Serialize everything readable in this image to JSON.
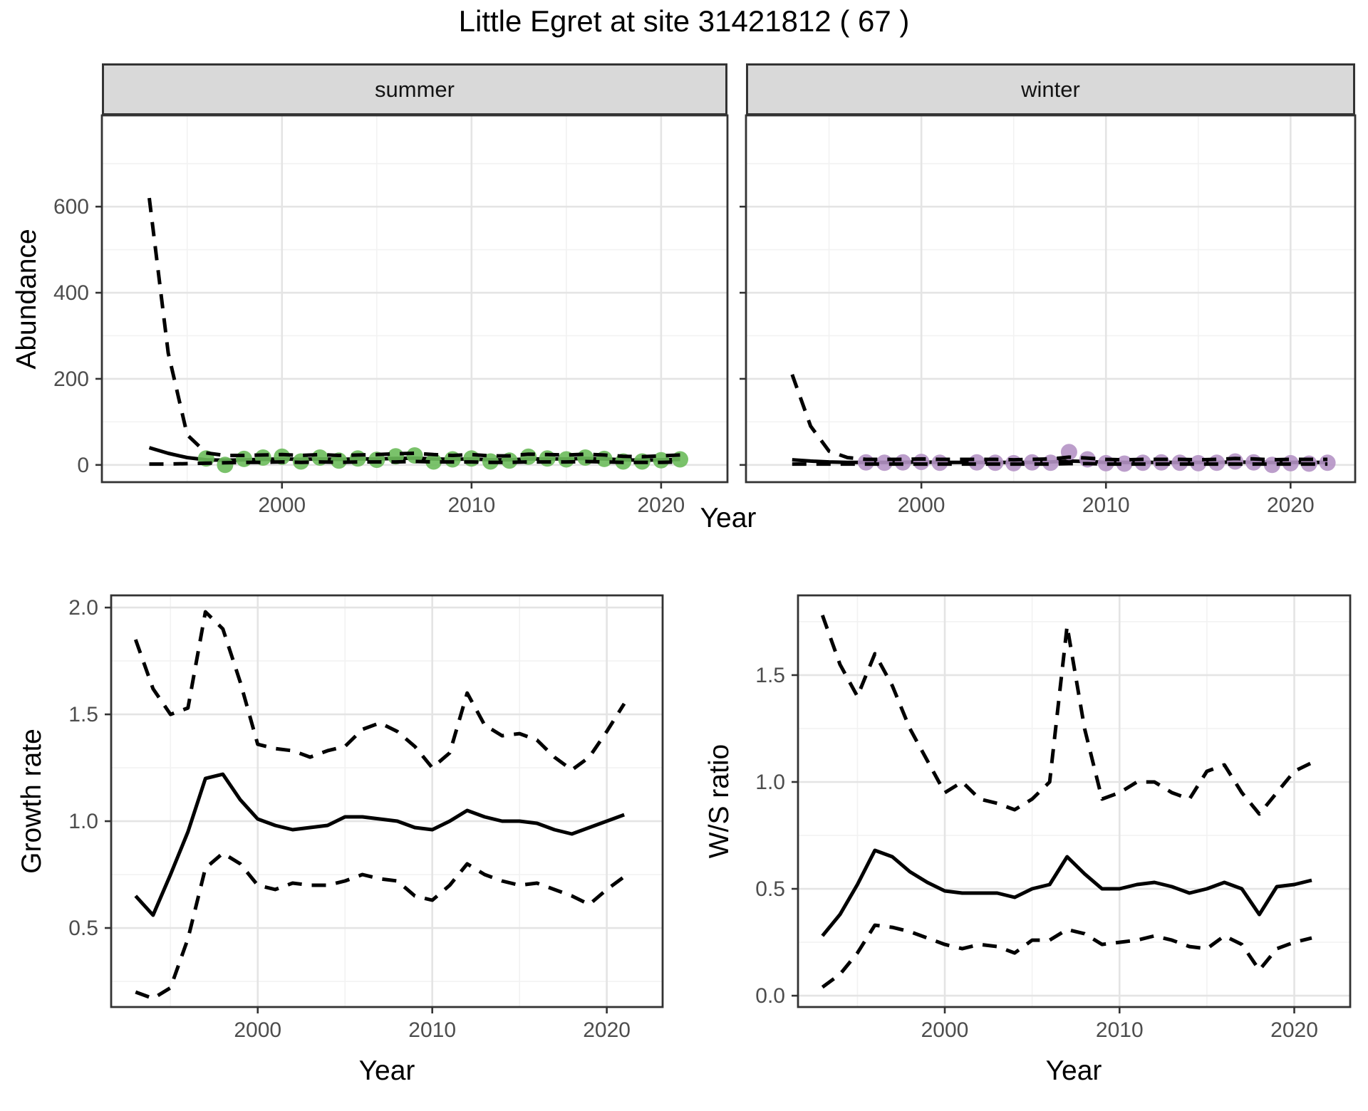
{
  "title": "Little Egret at site 31421812 ( 67 )",
  "facet_labels": {
    "summer": "summer",
    "winter": "winter"
  },
  "axis_titles": {
    "y_abundance": "Abundance",
    "x_year_top": "Year",
    "y_growth": "Growth rate",
    "x_year_growth": "Year",
    "y_ws": "W/S ratio",
    "x_year_ws": "Year"
  },
  "colors": {
    "summer_point": "#6cbb5b",
    "winter_point": "#b593c5",
    "line": "#000000",
    "strip_bg": "#d9d9d9",
    "grid_major": "#e4e4e4",
    "grid_minor": "#f2f2f2",
    "panel_border": "#333333",
    "tick_text": "#4d4d4d"
  },
  "chart_data": [
    {
      "id": "abundance_summer",
      "type": "line",
      "facet": "summer",
      "ylabel": "Abundance",
      "xlabel": "Year",
      "x_range": [
        1990.5,
        2023.5
      ],
      "y_range": [
        -40,
        812
      ],
      "x_ticks": [
        2000,
        2010,
        2020
      ],
      "x_tick_labels": [
        "2000",
        "2010",
        "2020"
      ],
      "x_minor": [
        1995,
        2005,
        2015
      ],
      "y_ticks": [
        0,
        200,
        400,
        600
      ],
      "y_tick_labels": [
        "0",
        "200",
        "400",
        "600"
      ],
      "y_minor": [
        100,
        300,
        500,
        700
      ],
      "show_y_tick_labels": true,
      "years": [
        1993,
        1994,
        1995,
        1996,
        1997,
        1998,
        1999,
        2000,
        2001,
        2002,
        2003,
        2004,
        2005,
        2006,
        2007,
        2008,
        2009,
        2010,
        2011,
        2012,
        2013,
        2014,
        2015,
        2016,
        2017,
        2018,
        2019,
        2020,
        2021
      ],
      "mean": [
        40,
        27,
        17,
        12,
        11,
        12,
        13,
        14,
        13,
        14,
        13,
        14,
        14,
        15,
        16,
        14,
        13,
        14,
        12,
        12,
        14,
        14,
        14,
        15,
        14,
        12,
        11,
        12,
        13
      ],
      "upper_ci": [
        620,
        260,
        70,
        28,
        22,
        22,
        23,
        24,
        22,
        24,
        22,
        23,
        24,
        26,
        27,
        24,
        22,
        24,
        21,
        21,
        25,
        24,
        23,
        25,
        23,
        20,
        19,
        21,
        23
      ],
      "lower_ci": [
        2,
        2,
        3,
        4,
        5,
        6,
        6,
        7,
        6,
        7,
        6,
        7,
        7,
        7,
        8,
        7,
        7,
        7,
        6,
        6,
        7,
        7,
        7,
        8,
        7,
        6,
        6,
        6,
        7
      ],
      "point_years": [
        1996,
        1997,
        1998,
        1999,
        2000,
        2001,
        2002,
        2003,
        2004,
        2005,
        2006,
        2007,
        2008,
        2009,
        2010,
        2011,
        2012,
        2013,
        2014,
        2015,
        2016,
        2017,
        2018,
        2019,
        2020,
        2021
      ],
      "point_values": [
        15,
        0,
        14,
        17,
        19,
        8,
        17,
        10,
        15,
        12,
        20,
        22,
        8,
        13,
        15,
        8,
        10,
        19,
        15,
        13,
        17,
        14,
        8,
        8,
        11,
        13
      ],
      "point_color": "#6cbb5b"
    },
    {
      "id": "abundance_winter",
      "type": "line",
      "facet": "winter",
      "ylabel": "Abundance",
      "xlabel": "Year",
      "x_range": [
        1990.5,
        2023.5
      ],
      "y_range": [
        -40,
        812
      ],
      "x_ticks": [
        2000,
        2010,
        2020
      ],
      "x_tick_labels": [
        "2000",
        "2010",
        "2020"
      ],
      "x_minor": [
        1995,
        2005,
        2015
      ],
      "y_ticks": [
        0,
        200,
        400,
        600
      ],
      "y_tick_labels": [
        "0",
        "200",
        "400",
        "600"
      ],
      "y_minor": [
        100,
        300,
        500,
        700
      ],
      "show_y_tick_labels": false,
      "years": [
        1993,
        1994,
        1995,
        1996,
        1997,
        1998,
        1999,
        2000,
        2001,
        2002,
        2003,
        2004,
        2005,
        2006,
        2007,
        2008,
        2009,
        2010,
        2011,
        2012,
        2013,
        2014,
        2015,
        2016,
        2017,
        2018,
        2019,
        2020,
        2021,
        2022
      ],
      "mean": [
        12,
        9,
        7,
        6,
        6,
        6,
        6,
        7,
        6,
        6,
        6,
        6,
        6,
        6,
        7,
        9,
        8,
        6,
        6,
        6,
        6,
        6,
        6,
        6,
        7,
        6,
        6,
        6,
        6,
        6
      ],
      "upper_ci": [
        210,
        90,
        32,
        17,
        13,
        13,
        13,
        14,
        13,
        13,
        13,
        13,
        12,
        13,
        14,
        18,
        16,
        13,
        12,
        13,
        13,
        13,
        12,
        13,
        15,
        14,
        12,
        13,
        13,
        13
      ],
      "lower_ci": [
        2,
        2,
        2,
        2,
        2,
        2,
        2,
        2,
        2,
        2,
        2,
        2,
        2,
        2,
        2,
        3,
        3,
        2,
        2,
        2,
        2,
        2,
        2,
        2,
        2,
        2,
        2,
        2,
        2,
        2
      ],
      "point_years": [
        1997,
        1998,
        1999,
        2000,
        2001,
        2003,
        2004,
        2005,
        2006,
        2007,
        2008,
        2009,
        2010,
        2011,
        2012,
        2013,
        2014,
        2015,
        2016,
        2017,
        2018,
        2019,
        2020,
        2021,
        2022
      ],
      "point_values": [
        6,
        5,
        6,
        7,
        5,
        6,
        5,
        4,
        6,
        5,
        30,
        13,
        4,
        3,
        5,
        6,
        5,
        4,
        5,
        8,
        6,
        0,
        4,
        3,
        5
      ],
      "point_color": "#b593c5"
    },
    {
      "id": "growth_rate",
      "type": "line",
      "facet": null,
      "ylabel": "Growth rate",
      "xlabel": "Year",
      "x_range": [
        1991.6,
        2023.2
      ],
      "y_range": [
        0.13,
        2.057
      ],
      "x_ticks": [
        2000,
        2010,
        2020
      ],
      "x_tick_labels": [
        "2000",
        "2010",
        "2020"
      ],
      "x_minor": [
        1995,
        2005,
        2015
      ],
      "y_ticks": [
        0.5,
        1.0,
        1.5,
        2.0
      ],
      "y_tick_labels": [
        "0.5",
        "1.0",
        "1.5",
        "2.0"
      ],
      "y_minor": [
        0.25,
        0.75,
        1.25,
        1.75
      ],
      "show_y_tick_labels": true,
      "years": [
        1993,
        1994,
        1995,
        1996,
        1997,
        1998,
        1999,
        2000,
        2001,
        2002,
        2003,
        2004,
        2005,
        2006,
        2007,
        2008,
        2009,
        2010,
        2011,
        2012,
        2013,
        2014,
        2015,
        2016,
        2017,
        2018,
        2019,
        2020,
        2021
      ],
      "mean": [
        0.65,
        0.56,
        0.75,
        0.95,
        1.2,
        1.22,
        1.1,
        1.01,
        0.98,
        0.96,
        0.97,
        0.98,
        1.02,
        1.02,
        1.01,
        1.0,
        0.97,
        0.96,
        1.0,
        1.05,
        1.02,
        1.0,
        1.0,
        0.99,
        0.96,
        0.94,
        0.97,
        1.0,
        1.03
      ],
      "upper_ci": [
        1.85,
        1.62,
        1.5,
        1.53,
        1.98,
        1.9,
        1.65,
        1.36,
        1.34,
        1.33,
        1.3,
        1.33,
        1.35,
        1.43,
        1.46,
        1.42,
        1.35,
        1.25,
        1.32,
        1.6,
        1.45,
        1.4,
        1.41,
        1.38,
        1.3,
        1.24,
        1.3,
        1.42,
        1.55
      ],
      "lower_ci": [
        0.2,
        0.17,
        0.22,
        0.45,
        0.78,
        0.85,
        0.8,
        0.7,
        0.68,
        0.71,
        0.7,
        0.7,
        0.72,
        0.75,
        0.73,
        0.72,
        0.65,
        0.63,
        0.7,
        0.8,
        0.75,
        0.72,
        0.7,
        0.71,
        0.68,
        0.65,
        0.61,
        0.68,
        0.74
      ],
      "point_years": [],
      "point_values": [],
      "point_color": null
    },
    {
      "id": "ws_ratio",
      "type": "line",
      "facet": null,
      "ylabel": "W/S ratio",
      "xlabel": "Year",
      "x_range": [
        1991.6,
        2023.2
      ],
      "y_range": [
        -0.053,
        1.873
      ],
      "x_ticks": [
        2000,
        2010,
        2020
      ],
      "x_tick_labels": [
        "2000",
        "2010",
        "2020"
      ],
      "x_minor": [
        1995,
        2005,
        2015
      ],
      "y_ticks": [
        0.0,
        0.5,
        1.0,
        1.5
      ],
      "y_tick_labels": [
        "0.0",
        "0.5",
        "1.0",
        "1.5"
      ],
      "y_minor": [
        0.25,
        0.75,
        1.25,
        1.75
      ],
      "show_y_tick_labels": true,
      "years": [
        1993,
        1994,
        1995,
        1996,
        1997,
        1998,
        1999,
        2000,
        2001,
        2002,
        2003,
        2004,
        2005,
        2006,
        2007,
        2008,
        2009,
        2010,
        2011,
        2012,
        2013,
        2014,
        2015,
        2016,
        2017,
        2018,
        2019,
        2020,
        2021
      ],
      "mean": [
        0.28,
        0.38,
        0.52,
        0.68,
        0.65,
        0.58,
        0.53,
        0.49,
        0.48,
        0.48,
        0.48,
        0.46,
        0.5,
        0.52,
        0.65,
        0.57,
        0.5,
        0.5,
        0.52,
        0.53,
        0.51,
        0.48,
        0.5,
        0.53,
        0.5,
        0.38,
        0.51,
        0.52,
        0.54
      ],
      "upper_ci": [
        1.78,
        1.55,
        1.4,
        1.6,
        1.45,
        1.25,
        1.1,
        0.95,
        1.0,
        0.92,
        0.9,
        0.87,
        0.92,
        1.0,
        1.73,
        1.25,
        0.92,
        0.95,
        1.0,
        1.0,
        0.95,
        0.92,
        1.05,
        1.08,
        0.95,
        0.85,
        0.95,
        1.05,
        1.09
      ],
      "lower_ci": [
        0.04,
        0.1,
        0.2,
        0.33,
        0.32,
        0.3,
        0.27,
        0.24,
        0.22,
        0.24,
        0.23,
        0.2,
        0.26,
        0.26,
        0.31,
        0.29,
        0.24,
        0.25,
        0.26,
        0.28,
        0.26,
        0.23,
        0.22,
        0.28,
        0.24,
        0.12,
        0.22,
        0.25,
        0.27
      ]
    }
  ]
}
